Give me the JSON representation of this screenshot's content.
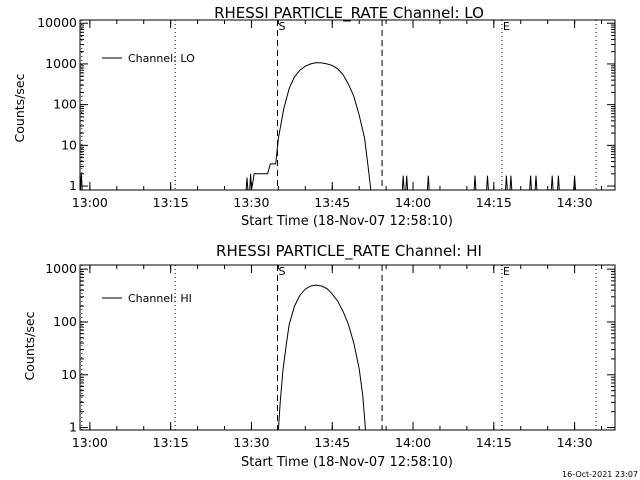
{
  "chart_data": [
    {
      "type": "line",
      "title": "RHESSI PARTICLE_RATE Channel: LO",
      "xlabel": "Start Time (18-Nov-07 12:58:10)",
      "ylabel": "Counts/sec",
      "yscale": "log",
      "xlim": [
        "12:58:10",
        "14:37:30"
      ],
      "ylim": [
        0.8,
        12000
      ],
      "x_ticks": [
        "13:00",
        "13:15",
        "13:30",
        "13:45",
        "14:00",
        "14:15",
        "14:30"
      ],
      "y_ticks": [
        "1",
        "10",
        "100",
        "1000",
        "10000"
      ],
      "legend": {
        "label": "Channel: LO",
        "placement": "top-left"
      },
      "markers": [
        {
          "label": "",
          "time": "12:58:30",
          "style": "dotted"
        },
        {
          "label": "",
          "time": "13:15:50",
          "style": "dotted"
        },
        {
          "label": "S",
          "time": "13:34:50",
          "style": "dashed"
        },
        {
          "label": "",
          "time": "13:54:15",
          "style": "dashed"
        },
        {
          "label": "E",
          "time": "14:16:30",
          "style": "dotted"
        },
        {
          "label": "",
          "time": "14:34:00",
          "style": "dotted"
        }
      ],
      "series": [
        {
          "name": "Channel: LO",
          "points": [
            [
              "12:58:15",
              0.8
            ],
            [
              "12:58:25",
              2
            ],
            [
              "12:58:35",
              0.8
            ],
            [
              "13:29:00",
              0.8
            ],
            [
              "13:29:10",
              1.6
            ],
            [
              "13:29:20",
              0.8
            ],
            [
              "13:29:40",
              0.8
            ],
            [
              "13:29:50",
              2
            ],
            [
              "13:30:00",
              0.8
            ],
            [
              "13:30:20",
              1.4
            ],
            [
              "13:30:30",
              2
            ],
            [
              "13:33:00",
              2
            ],
            [
              "13:33:30",
              3.5
            ],
            [
              "13:34:30",
              3.5
            ],
            [
              "13:35:00",
              15
            ],
            [
              "13:36:00",
              80
            ],
            [
              "13:37:00",
              250
            ],
            [
              "13:38:00",
              480
            ],
            [
              "13:39:00",
              700
            ],
            [
              "13:40:00",
              880
            ],
            [
              "13:41:00",
              1000
            ],
            [
              "13:42:00",
              1080
            ],
            [
              "13:43:00",
              1060
            ],
            [
              "13:44:00",
              1000
            ],
            [
              "13:45:00",
              920
            ],
            [
              "13:46:00",
              760
            ],
            [
              "13:47:00",
              550
            ],
            [
              "13:48:00",
              320
            ],
            [
              "13:49:00",
              160
            ],
            [
              "13:50:00",
              55
            ],
            [
              "13:51:00",
              15
            ],
            [
              "13:51:40",
              3
            ],
            [
              "13:52:10",
              0.8
            ],
            [
              "13:58:00",
              0.8
            ],
            [
              "13:58:10",
              1.8
            ],
            [
              "13:58:20",
              0.8
            ],
            [
              "13:58:40",
              0.8
            ],
            [
              "13:58:50",
              1.8
            ],
            [
              "13:59:00",
              0.8
            ],
            [
              "14:02:40",
              0.8
            ],
            [
              "14:02:50",
              1.8
            ],
            [
              "14:03:00",
              0.8
            ],
            [
              "14:11:20",
              0.8
            ],
            [
              "14:11:30",
              1.8
            ],
            [
              "14:11:40",
              0.8
            ],
            [
              "14:13:40",
              0.8
            ],
            [
              "14:13:50",
              1.8
            ],
            [
              "14:14:00",
              0.8
            ],
            [
              "14:17:10",
              0.8
            ],
            [
              "14:17:20",
              1.8
            ],
            [
              "14:17:30",
              0.8
            ],
            [
              "14:18:00",
              0.8
            ],
            [
              "14:18:10",
              1.8
            ],
            [
              "14:18:20",
              0.8
            ],
            [
              "14:21:40",
              0.8
            ],
            [
              "14:21:50",
              1.8
            ],
            [
              "14:22:00",
              0.8
            ],
            [
              "14:22:40",
              0.8
            ],
            [
              "14:22:50",
              1.8
            ],
            [
              "14:23:00",
              0.8
            ],
            [
              "14:25:40",
              0.8
            ],
            [
              "14:25:50",
              1.8
            ],
            [
              "14:26:00",
              0.8
            ],
            [
              "14:26:50",
              0.8
            ],
            [
              "14:27:00",
              1.8
            ],
            [
              "14:27:10",
              0.8
            ],
            [
              "14:29:50",
              0.8
            ],
            [
              "14:30:00",
              1.8
            ],
            [
              "14:30:10",
              0.8
            ]
          ]
        }
      ]
    },
    {
      "type": "line",
      "title": "RHESSI PARTICLE_RATE Channel: HI",
      "xlabel": "Start Time (18-Nov-07 12:58:10)",
      "ylabel": "Counts/sec",
      "yscale": "log",
      "xlim": [
        "12:58:10",
        "14:37:30"
      ],
      "ylim": [
        0.9,
        1200
      ],
      "x_ticks": [
        "13:00",
        "13:15",
        "13:30",
        "13:45",
        "14:00",
        "14:15",
        "14:30"
      ],
      "y_ticks": [
        "1",
        "10",
        "100",
        "1000"
      ],
      "legend": {
        "label": "Channel: HI",
        "placement": "top-left"
      },
      "markers": [
        {
          "label": "",
          "time": "12:58:30",
          "style": "dotted"
        },
        {
          "label": "",
          "time": "13:15:50",
          "style": "dotted"
        },
        {
          "label": "S",
          "time": "13:34:50",
          "style": "dashed"
        },
        {
          "label": "",
          "time": "13:54:15",
          "style": "dashed"
        },
        {
          "label": "E",
          "time": "14:16:30",
          "style": "dotted"
        },
        {
          "label": "",
          "time": "14:34:00",
          "style": "dotted"
        }
      ],
      "series": [
        {
          "name": "Channel: HI",
          "points": [
            [
              "13:35:00",
              0.9
            ],
            [
              "13:35:20",
              3
            ],
            [
              "13:35:50",
              12
            ],
            [
              "13:36:30",
              40
            ],
            [
              "13:37:00",
              90
            ],
            [
              "13:38:00",
              200
            ],
            [
              "13:39:00",
              320
            ],
            [
              "13:40:00",
              420
            ],
            [
              "13:41:00",
              480
            ],
            [
              "13:42:00",
              500
            ],
            [
              "13:43:00",
              480
            ],
            [
              "13:44:00",
              430
            ],
            [
              "13:45:00",
              340
            ],
            [
              "13:46:00",
              250
            ],
            [
              "13:47:00",
              160
            ],
            [
              "13:48:00",
              90
            ],
            [
              "13:49:00",
              40
            ],
            [
              "13:50:00",
              13
            ],
            [
              "13:50:40",
              4
            ],
            [
              "13:51:10",
              0.9
            ]
          ]
        }
      ]
    }
  ],
  "footer": {
    "timestamp": "16-Oct-2021 23:07"
  }
}
